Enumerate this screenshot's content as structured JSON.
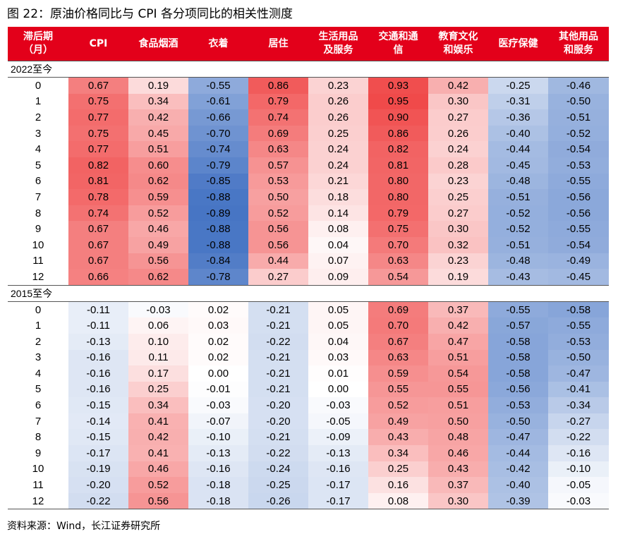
{
  "title": "图 22：原油价格同比与 CPI 各分项同比的相关性测度",
  "columns": [
    [
      "滞后期",
      "（月）"
    ],
    [
      "CPI"
    ],
    [
      "食品烟酒"
    ],
    [
      "衣着"
    ],
    [
      "居住"
    ],
    [
      "生活用品",
      "及服务"
    ],
    [
      "交通和通",
      "信"
    ],
    [
      "教育文化",
      "和娱乐"
    ],
    [
      "医疗保健"
    ],
    [
      "其他用品",
      "和服务"
    ]
  ],
  "colors": {
    "header_bg": "#e3001a",
    "positive": "#f04a4a",
    "negative": "#3b6cc0",
    "neutral": "#ffffff"
  },
  "sections": [
    {
      "label": "2022至今",
      "rows": [
        [
          "0",
          "0.67",
          "0.19",
          "-0.55",
          "0.86",
          "0.23",
          "0.93",
          "0.42",
          "-0.25",
          "-0.46"
        ],
        [
          "1",
          "0.75",
          "0.34",
          "-0.61",
          "0.79",
          "0.26",
          "0.95",
          "0.30",
          "-0.31",
          "-0.50"
        ],
        [
          "2",
          "0.77",
          "0.42",
          "-0.66",
          "0.74",
          "0.26",
          "0.90",
          "0.27",
          "-0.36",
          "-0.51"
        ],
        [
          "3",
          "0.75",
          "0.45",
          "-0.70",
          "0.69",
          "0.25",
          "0.86",
          "0.26",
          "-0.40",
          "-0.52"
        ],
        [
          "4",
          "0.77",
          "0.51",
          "-0.74",
          "0.63",
          "0.24",
          "0.82",
          "0.24",
          "-0.44",
          "-0.54"
        ],
        [
          "5",
          "0.82",
          "0.60",
          "-0.79",
          "0.57",
          "0.24",
          "0.81",
          "0.28",
          "-0.45",
          "-0.53"
        ],
        [
          "6",
          "0.81",
          "0.62",
          "-0.85",
          "0.53",
          "0.21",
          "0.80",
          "0.23",
          "-0.48",
          "-0.55"
        ],
        [
          "7",
          "0.78",
          "0.59",
          "-0.88",
          "0.50",
          "0.18",
          "0.80",
          "0.25",
          "-0.51",
          "-0.56"
        ],
        [
          "8",
          "0.74",
          "0.52",
          "-0.89",
          "0.52",
          "0.14",
          "0.79",
          "0.27",
          "-0.52",
          "-0.56"
        ],
        [
          "9",
          "0.67",
          "0.46",
          "-0.88",
          "0.56",
          "0.08",
          "0.75",
          "0.30",
          "-0.52",
          "-0.55"
        ],
        [
          "10",
          "0.67",
          "0.49",
          "-0.88",
          "0.56",
          "0.04",
          "0.70",
          "0.32",
          "-0.51",
          "-0.54"
        ],
        [
          "11",
          "0.67",
          "0.56",
          "-0.84",
          "0.44",
          "0.07",
          "0.63",
          "0.23",
          "-0.48",
          "-0.49"
        ],
        [
          "12",
          "0.66",
          "0.62",
          "-0.78",
          "0.27",
          "0.09",
          "0.54",
          "0.19",
          "-0.43",
          "-0.45"
        ]
      ]
    },
    {
      "label": "2015至今",
      "rows": [
        [
          "0",
          "-0.11",
          "-0.03",
          "0.02",
          "-0.21",
          "0.05",
          "0.69",
          "0.37",
          "-0.55",
          "-0.58"
        ],
        [
          "1",
          "-0.11",
          "0.06",
          "0.03",
          "-0.21",
          "0.05",
          "0.70",
          "0.42",
          "-0.57",
          "-0.55"
        ],
        [
          "2",
          "-0.13",
          "0.10",
          "0.02",
          "-0.22",
          "0.04",
          "0.67",
          "0.47",
          "-0.58",
          "-0.53"
        ],
        [
          "3",
          "-0.16",
          "0.11",
          "0.02",
          "-0.21",
          "0.03",
          "0.63",
          "0.51",
          "-0.58",
          "-0.50"
        ],
        [
          "4",
          "-0.16",
          "0.17",
          "0.00",
          "-0.21",
          "0.01",
          "0.59",
          "0.54",
          "-0.58",
          "-0.47"
        ],
        [
          "5",
          "-0.16",
          "0.25",
          "-0.01",
          "-0.21",
          "0.00",
          "0.55",
          "0.55",
          "-0.56",
          "-0.41"
        ],
        [
          "6",
          "-0.15",
          "0.34",
          "-0.03",
          "-0.20",
          "-0.03",
          "0.52",
          "0.51",
          "-0.53",
          "-0.34"
        ],
        [
          "7",
          "-0.14",
          "0.41",
          "-0.07",
          "-0.20",
          "-0.05",
          "0.49",
          "0.50",
          "-0.50",
          "-0.27"
        ],
        [
          "8",
          "-0.15",
          "0.42",
          "-0.10",
          "-0.21",
          "-0.09",
          "0.43",
          "0.48",
          "-0.47",
          "-0.22"
        ],
        [
          "9",
          "-0.17",
          "0.41",
          "-0.13",
          "-0.22",
          "-0.13",
          "0.34",
          "0.46",
          "-0.44",
          "-0.16"
        ],
        [
          "10",
          "-0.19",
          "0.46",
          "-0.16",
          "-0.24",
          "-0.16",
          "0.25",
          "0.43",
          "-0.42",
          "-0.10"
        ],
        [
          "11",
          "-0.20",
          "0.52",
          "-0.18",
          "-0.25",
          "-0.17",
          "0.16",
          "0.37",
          "-0.40",
          "-0.05"
        ],
        [
          "12",
          "-0.22",
          "0.56",
          "-0.18",
          "-0.26",
          "-0.17",
          "0.08",
          "0.30",
          "-0.39",
          "-0.03"
        ]
      ]
    }
  ],
  "source": "资料来源：Wind，长江证券研究所"
}
